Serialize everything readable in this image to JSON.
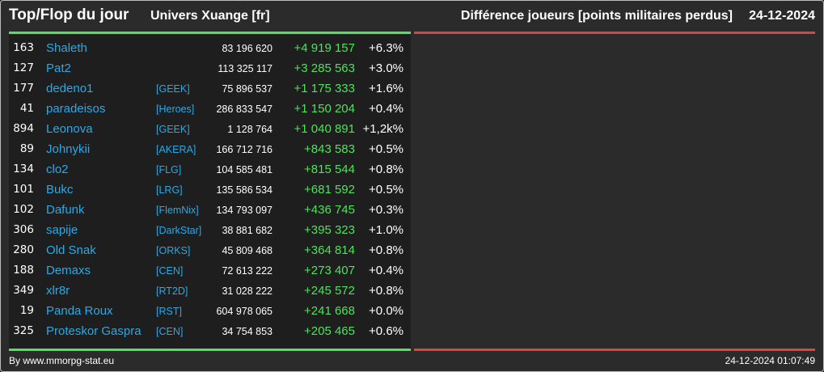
{
  "header": {
    "title": "Top/Flop du jour",
    "universe": "Univers Xuange [fr]",
    "metric": "Différence joueurs [points militaires perdus]",
    "date": "24-12-2024"
  },
  "colors": {
    "positive": "#4ee35a",
    "negative": "#d6463f",
    "link": "#2aa9e6",
    "background": "#2b2b2b"
  },
  "top": [
    {
      "rank": "163",
      "name": "Shaleth",
      "alliance": "",
      "points": "83 196 620",
      "diff": "+4 919 157",
      "pct": "+6.3%"
    },
    {
      "rank": "127",
      "name": "Pat2",
      "alliance": "",
      "points": "113 325 117",
      "diff": "+3 285 563",
      "pct": "+3.0%"
    },
    {
      "rank": "177",
      "name": "dedeno1",
      "alliance": "[GEEK]",
      "points": "75 896 537",
      "diff": "+1 175 333",
      "pct": "+1.6%"
    },
    {
      "rank": "41",
      "name": "paradeisos",
      "alliance": "[Heroes]",
      "points": "286 833 547",
      "diff": "+1 150 204",
      "pct": "+0.4%"
    },
    {
      "rank": "894",
      "name": "Leonova",
      "alliance": "[GEEK]",
      "points": "1 128 764",
      "diff": "+1 040 891",
      "pct": "+1,2k%"
    },
    {
      "rank": "89",
      "name": "Johnykii",
      "alliance": "[AKERA]",
      "points": "166 712 716",
      "diff": "+843 583",
      "pct": "+0.5%"
    },
    {
      "rank": "134",
      "name": "clo2",
      "alliance": "[FLG]",
      "points": "104 585 481",
      "diff": "+815 544",
      "pct": "+0.8%"
    },
    {
      "rank": "101",
      "name": "Bukc",
      "alliance": "[LRG]",
      "points": "135 586 534",
      "diff": "+681 592",
      "pct": "+0.5%"
    },
    {
      "rank": "102",
      "name": "Dafunk",
      "alliance": "[FlemNix]",
      "points": "134 793 097",
      "diff": "+436 745",
      "pct": "+0.3%"
    },
    {
      "rank": "306",
      "name": "sapije",
      "alliance": "[DarkStar]",
      "points": "38 881 682",
      "diff": "+395 323",
      "pct": "+1.0%"
    },
    {
      "rank": "280",
      "name": "Old Snak",
      "alliance": "[ORKS]",
      "points": "45 809 468",
      "diff": "+364 814",
      "pct": "+0.8%"
    },
    {
      "rank": "188",
      "name": "Demaxs",
      "alliance": "[CEN]",
      "points": "72 613 222",
      "diff": "+273 407",
      "pct": "+0.4%"
    },
    {
      "rank": "349",
      "name": "xlr8r",
      "alliance": "[RT2D]",
      "points": "31 028 222",
      "diff": "+245 572",
      "pct": "+0.8%"
    },
    {
      "rank": "19",
      "name": "Panda Roux",
      "alliance": "[RST]",
      "points": "604 978 065",
      "diff": "+241 668",
      "pct": "+0.0%"
    },
    {
      "rank": "325",
      "name": "Proteskor Gaspra",
      "alliance": "[CEN]",
      "points": "34 754 853",
      "diff": "+205 465",
      "pct": "+0.6%"
    }
  ],
  "footer": {
    "source": "By www.mmorpg-stat.eu",
    "timestamp": "24-12-2024 01:07:49"
  }
}
